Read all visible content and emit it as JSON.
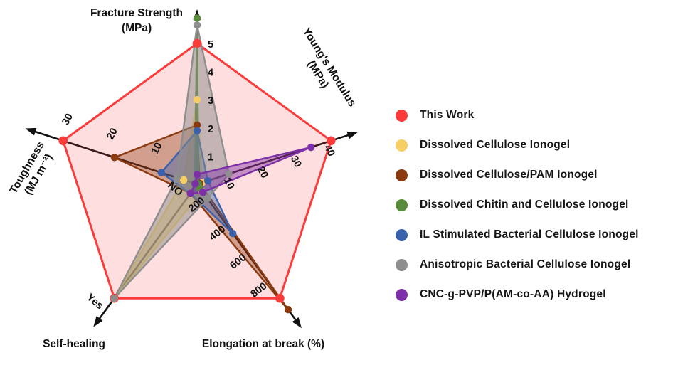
{
  "figure": {
    "background": "#ffffff"
  },
  "chart_data": {
    "type": "radar",
    "axis_order": [
      "fracture_strength_mpa",
      "youngs_modulus_mpa",
      "elongation_percent",
      "self_healing",
      "toughness_mj_m2"
    ],
    "axes": [
      {
        "id": "fracture-strength",
        "title_lines": [
          "Fracture Strength",
          "(MPa)"
        ],
        "max": 5,
        "ticks": [
          {
            "v": 1,
            "label": "1"
          },
          {
            "v": 2,
            "label": "2"
          },
          {
            "v": 3,
            "label": "3"
          },
          {
            "v": 4,
            "label": "4"
          },
          {
            "v": 5,
            "label": "5"
          }
        ]
      },
      {
        "id": "youngs-modulus",
        "title_lines": [
          "Young's Modulus",
          "(MPa)"
        ],
        "max": 40,
        "ticks": [
          {
            "v": 10,
            "label": "10"
          },
          {
            "v": 20,
            "label": "20"
          },
          {
            "v": 30,
            "label": "30"
          },
          {
            "v": 40,
            "label": "40"
          }
        ]
      },
      {
        "id": "elongation-at-break",
        "title_lines": [
          "Elongation at break (%)"
        ],
        "max": 800,
        "ticks": [
          {
            "v": 200,
            "label": "200"
          },
          {
            "v": 400,
            "label": "400"
          },
          {
            "v": 600,
            "label": "600"
          },
          {
            "v": 800,
            "label": "800"
          }
        ]
      },
      {
        "id": "self-healing",
        "title_lines": [
          "Self-healing"
        ],
        "max": 1,
        "ticks": [
          {
            "v": 0.15,
            "label": "NO"
          },
          {
            "v": 1,
            "label": "Yes"
          }
        ]
      },
      {
        "id": "toughness",
        "title_lines": [
          "Toughness",
          "(MJ m⁻²)"
        ],
        "max": 30,
        "ticks": [
          {
            "v": 10,
            "label": "10"
          },
          {
            "v": 20,
            "label": "20"
          },
          {
            "v": 30,
            "label": "30"
          }
        ]
      }
    ],
    "series": [
      {
        "name": "This Work",
        "color": "#FB3A3A",
        "fill_alpha": 0.17,
        "stroke_width": 3,
        "dot_r": 6.3,
        "values": {
          "fracture_strength_mpa": 5,
          "youngs_modulus_mpa": 40,
          "elongation_percent": 800,
          "self_healing": "Yes",
          "toughness_mj_m2": 30
        }
      },
      {
        "name": "Dissolved Cellulose Ionogel",
        "color": "#F7CE63",
        "fill_alpha": 0.5,
        "stroke_width": 2.4,
        "dot_r": 5.2,
        "values": {
          "fracture_strength_mpa": 3,
          "youngs_modulus_mpa": 1.5,
          "elongation_percent": 50,
          "self_healing": "Yes",
          "toughness_mj_m2": 3
        }
      },
      {
        "name": "Dissolved Cellulose/PAM Ionogel",
        "color": "#8B3A0F",
        "fill_alpha": 0.38,
        "stroke_width": 2.4,
        "dot_r": 5.2,
        "values": {
          "fracture_strength_mpa": 2.1,
          "youngs_modulus_mpa": 0.8,
          "elongation_percent": 880,
          "self_healing": "NO",
          "toughness_mj_m2": 18.5
        }
      },
      {
        "name": "Dissolved Chitin and Cellulose Ionogel",
        "color": "#5A8A3C",
        "fill_alpha": 0.42,
        "stroke_width": 2.4,
        "dot_r": 5.2,
        "values": {
          "fracture_strength_mpa": 5.9,
          "youngs_modulus_mpa": 0.4,
          "elongation_percent": 25,
          "self_healing": "NO",
          "toughness_mj_m2": 0.5
        }
      },
      {
        "name": "IL Stimulated Bacterial Cellulose Ionogel",
        "color": "#3A62AC",
        "fill_alpha": 0.42,
        "stroke_width": 2.4,
        "dot_r": 5.2,
        "values": {
          "fracture_strength_mpa": 1.9,
          "youngs_modulus_mpa": 3.2,
          "elongation_percent": 345,
          "self_healing": "NO",
          "toughness_mj_m2": 8
        }
      },
      {
        "name": "Anisotropic Bacterial Cellulose Ionogel",
        "color": "#8E8E8E",
        "fill_alpha": 0.52,
        "stroke_width": 2.4,
        "dot_r": 5.2,
        "values": {
          "fracture_strength_mpa": 5.65,
          "youngs_modulus_mpa": 9.5,
          "elongation_percent": 100,
          "self_healing": "Yes",
          "toughness_mj_m2": 4.5
        }
      },
      {
        "name": "CNC-g-PVP/P(AM-co-AA) Hydrogel",
        "color": "#7C2FA7",
        "fill_alpha": 0.45,
        "stroke_width": 2.4,
        "dot_r": 5.2,
        "values": {
          "fracture_strength_mpa": 0.35,
          "youngs_modulus_mpa": 34,
          "elongation_percent": 55,
          "self_healing": "NO",
          "toughness_mj_m2": 0.4
        }
      }
    ]
  }
}
